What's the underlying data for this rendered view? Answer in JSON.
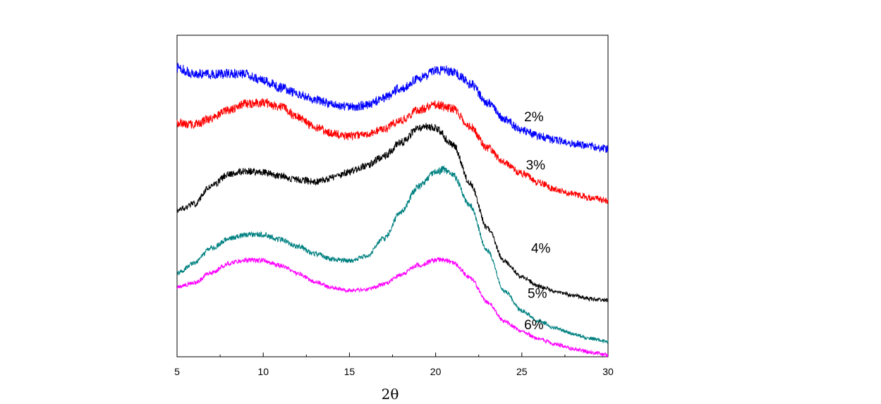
{
  "chart_data": {
    "type": "line",
    "title": "",
    "xlabel": "2θ",
    "ylabel": "",
    "xlim": [
      5,
      30
    ],
    "ylim": [
      0,
      1
    ],
    "x_ticks": [
      5,
      10,
      15,
      20,
      25,
      30
    ],
    "x_tick_labels": [
      "5",
      "10",
      "15",
      "20",
      "25",
      "30"
    ],
    "y_ticks_labeled": false,
    "grid": false,
    "legend": "inline labels at right",
    "series": [
      {
        "name": "2%",
        "color": "#0000ff",
        "x": [
          5,
          6,
          7,
          8,
          9,
          10,
          11,
          12,
          13,
          14,
          15,
          16,
          17,
          18,
          19,
          20,
          20.5,
          21,
          22,
          23,
          24,
          25,
          26,
          27,
          28,
          29,
          30
        ],
        "y": [
          0.898,
          0.88,
          0.878,
          0.88,
          0.878,
          0.859,
          0.838,
          0.819,
          0.8,
          0.785,
          0.777,
          0.782,
          0.805,
          0.836,
          0.865,
          0.888,
          0.891,
          0.888,
          0.85,
          0.79,
          0.737,
          0.705,
          0.686,
          0.673,
          0.663,
          0.655,
          0.646
        ]
      },
      {
        "name": "3%",
        "color": "#ff0000",
        "x": [
          5,
          6,
          7,
          8,
          9,
          10,
          11,
          12,
          13,
          14,
          15,
          16,
          17,
          18,
          19,
          20,
          21,
          22,
          23,
          24,
          25,
          26,
          27,
          28,
          29,
          30
        ],
        "y": [
          0.727,
          0.723,
          0.741,
          0.768,
          0.786,
          0.79,
          0.777,
          0.745,
          0.714,
          0.695,
          0.685,
          0.691,
          0.708,
          0.736,
          0.768,
          0.784,
          0.771,
          0.715,
          0.65,
          0.604,
          0.57,
          0.541,
          0.52,
          0.506,
          0.494,
          0.486
        ]
      },
      {
        "name": "4%",
        "color": "#000000",
        "x": [
          5,
          6,
          7,
          8,
          9,
          10,
          11,
          12,
          13,
          14,
          15,
          16,
          17,
          18,
          19,
          19.5,
          20,
          21,
          22,
          23,
          24,
          25,
          26,
          27,
          28,
          29,
          30
        ],
        "y": [
          0.455,
          0.476,
          0.532,
          0.568,
          0.577,
          0.575,
          0.563,
          0.55,
          0.545,
          0.556,
          0.575,
          0.595,
          0.624,
          0.667,
          0.709,
          0.718,
          0.712,
          0.66,
          0.54,
          0.4,
          0.297,
          0.248,
          0.219,
          0.203,
          0.19,
          0.18,
          0.175
        ]
      },
      {
        "name": "5%",
        "color": "#008080",
        "x": [
          5,
          6,
          7,
          8,
          9,
          10,
          11,
          12,
          13,
          14,
          15,
          16,
          17,
          18,
          19,
          20,
          20.5,
          21,
          22,
          23,
          24,
          25,
          26,
          27,
          28,
          29,
          30
        ],
        "y": [
          0.26,
          0.292,
          0.338,
          0.366,
          0.38,
          0.38,
          0.364,
          0.343,
          0.32,
          0.303,
          0.298,
          0.313,
          0.367,
          0.452,
          0.53,
          0.575,
          0.583,
          0.565,
          0.47,
          0.33,
          0.204,
          0.143,
          0.111,
          0.088,
          0.07,
          0.057,
          0.046
        ]
      },
      {
        "name": "6%",
        "color": "#ff00ff",
        "x": [
          5,
          6,
          7,
          8,
          9,
          10,
          11,
          12,
          13,
          14,
          15,
          16,
          17,
          18,
          19,
          20,
          20.5,
          21,
          22,
          23,
          24,
          25,
          26,
          27,
          28,
          29,
          30
        ],
        "y": [
          0.216,
          0.23,
          0.262,
          0.29,
          0.301,
          0.299,
          0.284,
          0.259,
          0.233,
          0.214,
          0.206,
          0.208,
          0.225,
          0.255,
          0.285,
          0.301,
          0.302,
          0.293,
          0.246,
          0.17,
          0.11,
          0.079,
          0.055,
          0.038,
          0.025,
          0.014,
          0.005
        ]
      }
    ],
    "annotations": [
      {
        "text": "2%",
        "x": 25.7,
        "y": 0.733
      },
      {
        "text": "3%",
        "x": 25.8,
        "y": 0.582
      },
      {
        "text": "4%",
        "x": 26.1,
        "y": 0.323
      },
      {
        "text": "5%",
        "x": 25.9,
        "y": 0.183
      },
      {
        "text": "6%",
        "x": 25.7,
        "y": 0.085
      }
    ]
  }
}
